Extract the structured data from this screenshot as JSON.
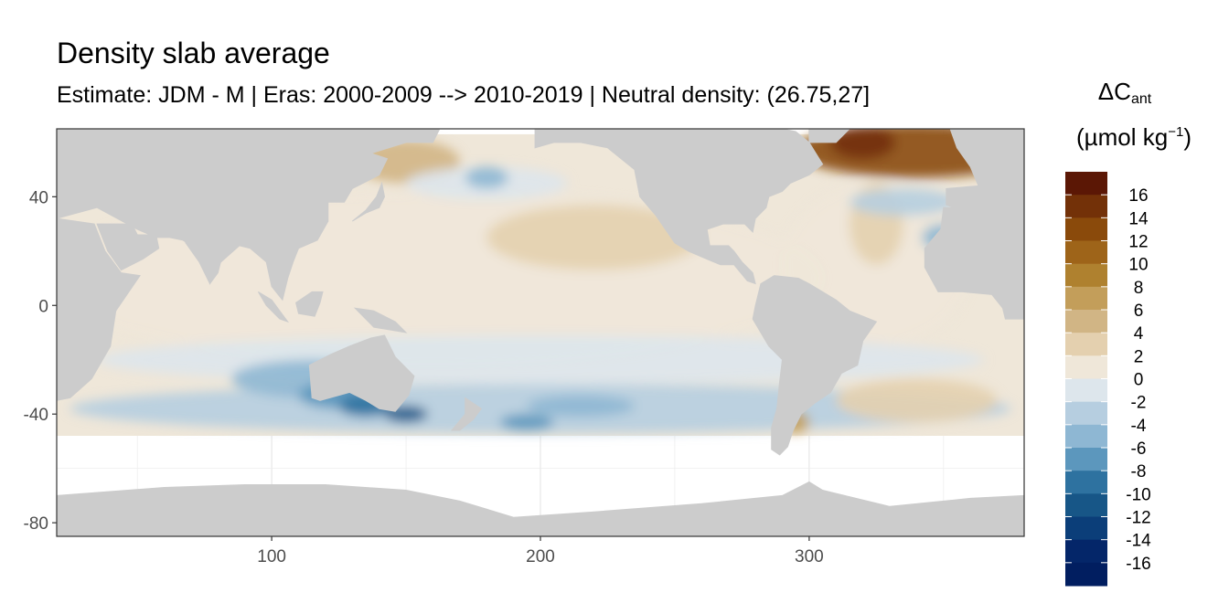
{
  "title": "Density slab average",
  "subtitle": "Estimate: JDM - M | Eras: 2000-2009 --> 2010-2019 | Neutral density: (26.75,27]",
  "legend": {
    "title_symbol": "ΔC",
    "title_sub": "ant",
    "unit_main": "(µmol kg",
    "unit_sup": "−1",
    "unit_end": ")"
  },
  "colors": {
    "land": "#cccccc",
    "no_data": "#ffffff",
    "grid": "#ebebeb",
    "panel_border": "#333333"
  },
  "chart_data": {
    "type": "heatmap",
    "title": "Density slab average",
    "subtitle": "Estimate: JDM - M | Eras: 2000-2009 --> 2010-2019 | Neutral density: (26.75,27]",
    "xlabel": "",
    "ylabel": "",
    "xlim": [
      20,
      380
    ],
    "ylim": [
      -85,
      65
    ],
    "x_ticks": [
      100,
      200,
      300
    ],
    "y_ticks": [
      40,
      0,
      -40,
      -80
    ],
    "grid": true,
    "legend_position": "right",
    "legend_labels": [
      "16",
      "14",
      "12",
      "10",
      "8",
      "6",
      "4",
      "2",
      "0",
      "-2",
      "-4",
      "-6",
      "-8",
      "-10",
      "-12",
      "-14",
      "-16"
    ],
    "legend_colors": [
      "#5b1705",
      "#733108",
      "#8a4a0b",
      "#9e6419",
      "#af812f",
      "#c39e5a",
      "#d1b585",
      "#e4d0af",
      "#efe7d9",
      "#dde6ec",
      "#b6cee0",
      "#8eb7d3",
      "#5c97bd",
      "#2e72a0",
      "#175687",
      "#0b3e79",
      "#042669",
      "#011e60"
    ],
    "fields": [
      {
        "x": 160,
        "y": 10,
        "rx": 145,
        "ry": 32,
        "value": 1
      },
      {
        "x": 220,
        "y": 25,
        "rx": 40,
        "ry": 12,
        "value": 3
      },
      {
        "x": 150,
        "y": 53,
        "rx": 20,
        "ry": 8,
        "value": 4
      },
      {
        "x": 325,
        "y": 15,
        "rx": 35,
        "ry": 30,
        "value": 1
      },
      {
        "x": 325,
        "y": 30,
        "rx": 10,
        "ry": 15,
        "value": 3
      },
      {
        "x": 340,
        "y": 57,
        "rx": 45,
        "ry": 10,
        "value": 12
      },
      {
        "x": 320,
        "y": 60,
        "rx": 12,
        "ry": 6,
        "value": 14
      },
      {
        "x": 180,
        "y": 45,
        "rx": 30,
        "ry": 6,
        "value": -2
      },
      {
        "x": 180,
        "y": 47,
        "rx": 8,
        "ry": 4,
        "value": -5
      },
      {
        "x": 335,
        "y": 38,
        "rx": 20,
        "ry": 5,
        "value": -3
      },
      {
        "x": 350,
        "y": 25,
        "rx": 8,
        "ry": 5,
        "value": -5
      },
      {
        "x": 200,
        "y": -20,
        "rx": 165,
        "ry": 9,
        "value": -1
      },
      {
        "x": 200,
        "y": -38,
        "rx": 175,
        "ry": 9,
        "value": -3
      },
      {
        "x": 115,
        "y": -27,
        "rx": 30,
        "ry": 7,
        "value": -5
      },
      {
        "x": 125,
        "y": -33,
        "rx": 15,
        "ry": 5,
        "value": -7
      },
      {
        "x": 135,
        "y": -37,
        "rx": 10,
        "ry": 4,
        "value": -9
      },
      {
        "x": 150,
        "y": -40,
        "rx": 8,
        "ry": 3,
        "value": -11
      },
      {
        "x": 215,
        "y": -37,
        "rx": 20,
        "ry": 4,
        "value": -6
      },
      {
        "x": 195,
        "y": -43,
        "rx": 10,
        "ry": 3,
        "value": -8
      },
      {
        "x": 340,
        "y": -35,
        "rx": 30,
        "ry": 8,
        "value": 2
      },
      {
        "x": 295,
        "y": -43,
        "rx": 5,
        "ry": 4,
        "value": 6
      }
    ]
  }
}
